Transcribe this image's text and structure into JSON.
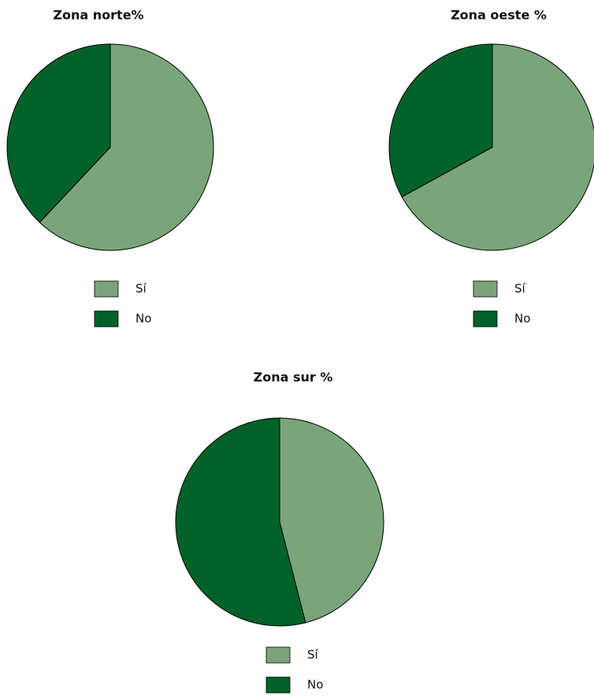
{
  "chart_data": [
    {
      "type": "pie",
      "title": "Zona norte%",
      "categories": [
        "Sí",
        "No"
      ],
      "values": [
        62,
        38
      ],
      "colors": [
        "#7aa57a",
        "#006228"
      ]
    },
    {
      "type": "pie",
      "title": "Zona oeste %",
      "categories": [
        "Sí",
        "No"
      ],
      "values": [
        67,
        33
      ],
      "colors": [
        "#7aa57a",
        "#006228"
      ]
    },
    {
      "type": "pie",
      "title": "Zona sur %",
      "categories": [
        "Sí",
        "No"
      ],
      "values": [
        46,
        54
      ],
      "colors": [
        "#7aa57a",
        "#006228"
      ]
    }
  ]
}
